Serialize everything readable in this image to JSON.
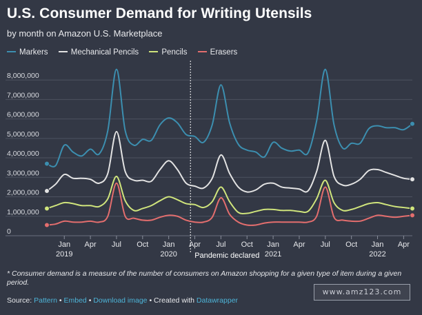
{
  "title": "U.S. Consumer Demand for Writing Utensils",
  "subtitle": "by month on Amazon U.S. Marketplace",
  "footnote": "* Consumer demand is a measure of the number of consumers on Amazon shopping for a given type of item during a given period.",
  "source": {
    "prefix": "Source:",
    "link1": "Pattern",
    "sep1": "•",
    "link2": "Embed",
    "sep2": "•",
    "link3": "Download image",
    "sep3": "• Created with",
    "link4": "Datawrapper"
  },
  "watermark": "www.amz123.com",
  "colors": {
    "background": "#333845",
    "grid": "#4d5260",
    "text": "#ffffff",
    "link": "#4db4d8"
  },
  "chart_data": {
    "type": "line",
    "x": [
      "2018-11",
      "2018-12",
      "2019-01",
      "2019-02",
      "2019-03",
      "2019-04",
      "2019-05",
      "2019-06",
      "2019-07",
      "2019-08",
      "2019-09",
      "2019-10",
      "2019-11",
      "2019-12",
      "2020-01",
      "2020-02",
      "2020-03",
      "2020-04",
      "2020-05",
      "2020-06",
      "2020-07",
      "2020-08",
      "2020-09",
      "2020-10",
      "2020-11",
      "2020-12",
      "2021-01",
      "2021-02",
      "2021-03",
      "2021-04",
      "2021-05",
      "2021-06",
      "2021-07",
      "2021-08",
      "2021-09",
      "2021-10",
      "2021-11",
      "2021-12",
      "2022-01",
      "2022-02",
      "2022-03",
      "2022-04",
      "2022-05"
    ],
    "ylim": [
      0,
      8500000
    ],
    "yticks": [
      0,
      1000000,
      2000000,
      3000000,
      4000000,
      5000000,
      6000000,
      7000000,
      8000000
    ],
    "ytick_labels": [
      "0",
      "1,000,000",
      "2,000,000",
      "3,000,000",
      "4,000,000",
      "5,000,000",
      "6,000,000",
      "7,000,000",
      "8,000,000"
    ],
    "xtick_labels": [
      {
        "x": "2019-01",
        "lines": [
          "Jan",
          "2019"
        ]
      },
      {
        "x": "2019-04",
        "lines": [
          "Apr"
        ]
      },
      {
        "x": "2019-07",
        "lines": [
          "Jul"
        ]
      },
      {
        "x": "2019-10",
        "lines": [
          "Oct"
        ]
      },
      {
        "x": "2020-01",
        "lines": [
          "Jan",
          "2020"
        ]
      },
      {
        "x": "2020-04",
        "lines": [
          "Apr"
        ]
      },
      {
        "x": "2020-07",
        "lines": [
          "Jul"
        ]
      },
      {
        "x": "2020-10",
        "lines": [
          "Oct"
        ]
      },
      {
        "x": "2021-01",
        "lines": [
          "Jan",
          "2021"
        ]
      },
      {
        "x": "2021-04",
        "lines": [
          "Apr"
        ]
      },
      {
        "x": "2021-07",
        "lines": [
          "Jul"
        ]
      },
      {
        "x": "2021-10",
        "lines": [
          "Oct"
        ]
      },
      {
        "x": "2022-01",
        "lines": [
          "Jan",
          "2022"
        ]
      },
      {
        "x": "2022-04",
        "lines": [
          "Apr"
        ]
      }
    ],
    "annotation": {
      "x": "2020-03",
      "label": "Pandemic declared"
    },
    "grid": true,
    "legend_position": "top-left",
    "series": [
      {
        "name": "Markers",
        "color": "#3c8fb0",
        "values": [
          3700000,
          3600000,
          4650000,
          4300000,
          4100000,
          4450000,
          4200000,
          5400000,
          8550000,
          5400000,
          4650000,
          4950000,
          4900000,
          5700000,
          6050000,
          5800000,
          5200000,
          5100000,
          4800000,
          5700000,
          7750000,
          5800000,
          4700000,
          4400000,
          4300000,
          4050000,
          4800000,
          4500000,
          4350000,
          4400000,
          4250000,
          5900000,
          8550000,
          5700000,
          4500000,
          4750000,
          4750000,
          5500000,
          5650000,
          5550000,
          5550000,
          5450000,
          5750000
        ]
      },
      {
        "name": "Mechanical Pencils",
        "color": "#e3e3e3",
        "values": [
          2300000,
          2650000,
          3150000,
          2950000,
          2950000,
          2900000,
          2700000,
          3200000,
          5350000,
          3300000,
          2850000,
          2850000,
          2800000,
          3400000,
          3850000,
          3400000,
          2700000,
          2550000,
          2450000,
          2950000,
          4150000,
          3200000,
          2500000,
          2250000,
          2350000,
          2650000,
          2700000,
          2500000,
          2450000,
          2400000,
          2300000,
          3300000,
          4900000,
          3050000,
          2600000,
          2650000,
          2900000,
          3350000,
          3400000,
          3250000,
          3100000,
          2950000,
          2900000
        ]
      },
      {
        "name": "Pencils",
        "color": "#d0e57c",
        "values": [
          1400000,
          1550000,
          1700000,
          1650000,
          1550000,
          1550000,
          1500000,
          1900000,
          3050000,
          1800000,
          1300000,
          1400000,
          1550000,
          1800000,
          2000000,
          1850000,
          1650000,
          1600000,
          1450000,
          1750000,
          2500000,
          1750000,
          1200000,
          1150000,
          1250000,
          1350000,
          1350000,
          1300000,
          1300000,
          1250000,
          1250000,
          1900000,
          2850000,
          1700000,
          1300000,
          1350000,
          1500000,
          1650000,
          1700000,
          1600000,
          1500000,
          1450000,
          1400000
        ]
      },
      {
        "name": "Erasers",
        "color": "#e46e6e",
        "values": [
          550000,
          600000,
          750000,
          700000,
          700000,
          750000,
          700000,
          1000000,
          2700000,
          1000000,
          900000,
          800000,
          800000,
          950000,
          1050000,
          1000000,
          800000,
          700000,
          700000,
          950000,
          1950000,
          1100000,
          700000,
          550000,
          550000,
          650000,
          700000,
          700000,
          700000,
          700000,
          700000,
          1000000,
          2500000,
          950000,
          800000,
          750000,
          750000,
          900000,
          1050000,
          1000000,
          950000,
          1000000,
          1050000
        ]
      }
    ]
  }
}
